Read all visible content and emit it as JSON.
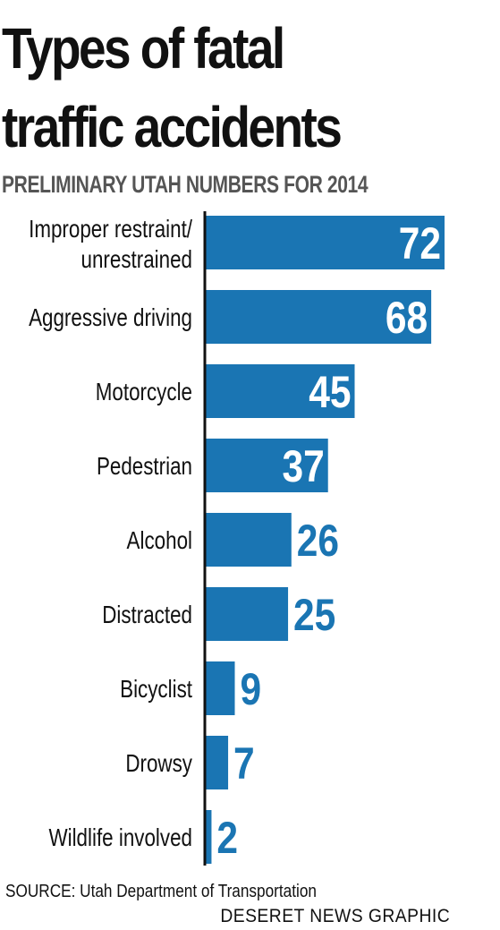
{
  "chart_data": {
    "type": "bar",
    "orientation": "horizontal",
    "title": "Types of fatal traffic accidents",
    "subtitle": "PRELIMINARY UTAH NUMBERS FOR 2014",
    "categories": [
      "Improper restraint/ unrestrained",
      "Aggressive driving",
      "Motorcycle",
      "Pedestrian",
      "Alcohol",
      "Distracted",
      "Bicyclist",
      "Drowsy",
      "Wildlife involved"
    ],
    "values": [
      72,
      68,
      45,
      37,
      26,
      25,
      9,
      7,
      2
    ],
    "data_labels": [
      "72",
      "68",
      "45",
      "37",
      "26",
      "25",
      "9",
      "7",
      "2"
    ],
    "xlabel": "",
    "ylabel": "",
    "xlim": [
      0,
      72
    ],
    "grid": false,
    "legend": "none",
    "bar_color": "#1a75b3",
    "label_color_inside": "#ffffff",
    "label_color_outside": "#1a75b3"
  },
  "source": "SOURCE: Utah Department of Transportation",
  "credit": "DESERET NEWS GRAPHIC"
}
